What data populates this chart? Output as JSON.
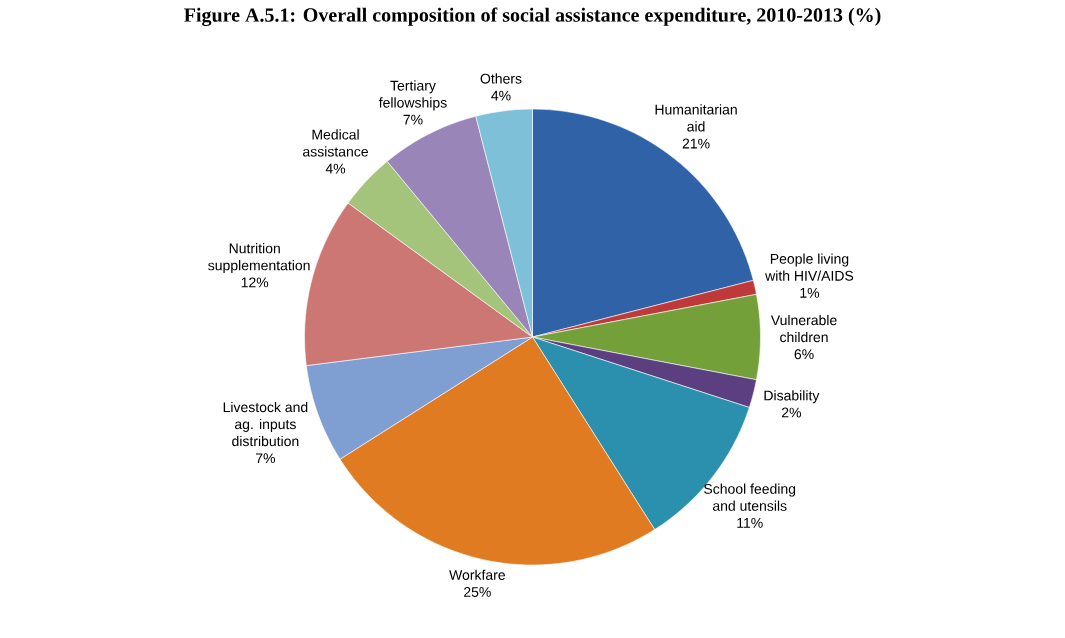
{
  "chart_data": {
    "type": "pie",
    "title": "Figure A.5.1: Overall composition of social assistance expenditure, 2010-2013 (%)",
    "categories": [
      "Humanitarian aid",
      "People living with HIV/AIDS",
      "Vulnerable children",
      "Disability",
      "School feeding and utensils",
      "Workfare",
      "Livestock and ag. inputs distribution",
      "Nutrition supplementation",
      "Medical assistance",
      "Tertiary fellowships",
      "Others"
    ],
    "values": [
      21,
      1,
      6,
      2,
      11,
      25,
      7,
      12,
      4,
      7,
      4
    ],
    "value_labels": [
      "21%",
      "1%",
      "6%",
      "2%",
      "11%",
      "25%",
      "7%",
      "12%",
      "4%",
      "7%",
      "4%"
    ],
    "colors": [
      "#2f62a6",
      "#c0393a",
      "#74a03a",
      "#5b3f80",
      "#2a90ae",
      "#e07b22",
      "#7f9fd3",
      "#cc7774",
      "#a5c47b",
      "#9985b8",
      "#7fc0d9"
    ]
  }
}
